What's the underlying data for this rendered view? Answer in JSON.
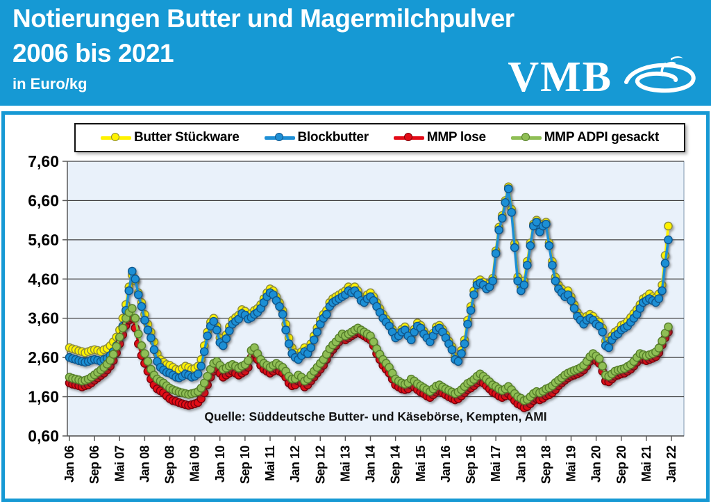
{
  "header": {
    "title_line1": "Notierungen Butter und Magermilchpulver",
    "title_line2": "2006 bis 2021",
    "unit": "in Euro/kg",
    "logo_text": "VMB"
  },
  "colors": {
    "header_bg": "#1699D4",
    "panel_border": "#1699D4",
    "plot_bg": "#E9F1FA",
    "gridline": "#404040",
    "axis": "#595959"
  },
  "chart_data": {
    "type": "line",
    "title": "Notierungen Butter und Magermilchpulver 2006 bis 2021",
    "ylabel": "Euro/kg",
    "ylim": [
      0.6,
      7.6
    ],
    "grid": true,
    "legend_position": "top",
    "y_tick_values": [
      0.6,
      1.6,
      2.6,
      3.6,
      4.6,
      5.6,
      6.6,
      7.6
    ],
    "y_tick_labels": [
      "0,60",
      "1,60",
      "2,60",
      "3,60",
      "4,60",
      "5,60",
      "6,60",
      "7,60"
    ],
    "x_tick_labels": [
      "Jan 06",
      "Sep 06",
      "Mai 07",
      "Jan 08",
      "Sep 08",
      "Mai 09",
      "Jan 10",
      "Sep 10",
      "Mai 11",
      "Jan 12",
      "Sep 12",
      "Mai 13",
      "Jan 14",
      "Sep 14",
      "Mai 15",
      "Jan 16",
      "Sep 16",
      "Mai 17",
      "Jan 18",
      "Sep 18",
      "Mai 19",
      "Jan 20",
      "Sep 20",
      "Mai 21",
      "Jan 22"
    ],
    "x_months_per_tick": 8,
    "months_total": 192,
    "x_start": "Jan 2006",
    "x_end": "Dez 2021",
    "source_note": "Quelle: Süddeutsche Butter- und Käsebörse, Kempten, AMI",
    "series": [
      {
        "name": "Butter Stückware",
        "color": "#FFF200",
        "marker_border": "#8C8C3A",
        "values": [
          2.85,
          2.82,
          2.8,
          2.77,
          2.75,
          2.72,
          2.75,
          2.78,
          2.8,
          2.78,
          2.75,
          2.8,
          2.83,
          2.9,
          3.0,
          3.12,
          3.3,
          3.6,
          3.95,
          4.4,
          4.7,
          4.55,
          4.25,
          4.0,
          3.7,
          3.45,
          3.25,
          3.0,
          2.7,
          2.55,
          2.48,
          2.42,
          2.4,
          2.35,
          2.3,
          2.28,
          2.32,
          2.38,
          2.35,
          2.3,
          2.32,
          2.38,
          2.55,
          2.9,
          3.25,
          3.5,
          3.6,
          3.4,
          3.1,
          3.02,
          3.18,
          3.38,
          3.55,
          3.62,
          3.68,
          3.82,
          3.78,
          3.68,
          3.72,
          3.8,
          3.85,
          3.95,
          4.1,
          4.25,
          4.35,
          4.3,
          4.15,
          4.0,
          3.8,
          3.45,
          3.1,
          2.85,
          2.72,
          2.65,
          2.75,
          2.85,
          2.8,
          2.95,
          3.15,
          3.35,
          3.55,
          3.7,
          3.8,
          4.0,
          4.1,
          4.15,
          4.2,
          4.25,
          4.3,
          4.4,
          4.35,
          4.4,
          4.3,
          4.15,
          4.1,
          4.2,
          4.25,
          4.15,
          4.0,
          3.85,
          3.7,
          3.58,
          3.48,
          3.32,
          3.18,
          3.22,
          3.32,
          3.38,
          3.22,
          3.12,
          3.32,
          3.48,
          3.42,
          3.28,
          3.18,
          3.08,
          3.22,
          3.38,
          3.42,
          3.32,
          3.18,
          3.02,
          2.88,
          2.62,
          2.58,
          2.78,
          3.05,
          3.55,
          3.9,
          4.3,
          4.52,
          4.58,
          4.52,
          4.42,
          4.48,
          4.62,
          5.32,
          5.92,
          6.22,
          6.6,
          6.95,
          6.38,
          5.5,
          4.65,
          4.4,
          4.55,
          5.05,
          5.52,
          6.0,
          6.1,
          5.85,
          6.0,
          6.05,
          5.52,
          5.05,
          4.65,
          4.45,
          4.35,
          4.25,
          4.3,
          4.15,
          3.95,
          3.75,
          3.65,
          3.55,
          3.65,
          3.7,
          3.65,
          3.55,
          3.5,
          3.35,
          3.02,
          2.95,
          3.15,
          3.25,
          3.3,
          3.42,
          3.45,
          3.52,
          3.62,
          3.72,
          3.82,
          3.95,
          4.1,
          4.15,
          4.22,
          4.15,
          4.12,
          4.22,
          4.45,
          5.2,
          5.95
        ]
      },
      {
        "name": "Blockbutter",
        "color": "#1E8FD5",
        "marker_border": "#10568C",
        "values": [
          2.6,
          2.57,
          2.55,
          2.52,
          2.5,
          2.48,
          2.5,
          2.53,
          2.55,
          2.53,
          2.5,
          2.55,
          2.58,
          2.65,
          2.75,
          2.9,
          3.1,
          3.4,
          3.8,
          4.3,
          4.8,
          4.6,
          4.2,
          3.9,
          3.55,
          3.3,
          3.1,
          2.8,
          2.5,
          2.35,
          2.28,
          2.22,
          2.2,
          2.15,
          2.1,
          2.08,
          2.12,
          2.18,
          2.15,
          2.1,
          2.12,
          2.18,
          2.38,
          2.75,
          3.15,
          3.4,
          3.52,
          3.3,
          2.98,
          2.9,
          3.08,
          3.28,
          3.45,
          3.52,
          3.58,
          3.72,
          3.68,
          3.58,
          3.62,
          3.7,
          3.75,
          3.85,
          4.0,
          4.15,
          4.25,
          4.2,
          4.05,
          3.9,
          3.7,
          3.3,
          2.95,
          2.7,
          2.6,
          2.55,
          2.65,
          2.75,
          2.7,
          2.85,
          3.05,
          3.25,
          3.45,
          3.6,
          3.7,
          3.9,
          4.0,
          4.05,
          4.1,
          4.15,
          4.2,
          4.3,
          4.25,
          4.3,
          4.2,
          4.05,
          4.0,
          4.1,
          4.15,
          4.05,
          3.9,
          3.75,
          3.6,
          3.5,
          3.4,
          3.25,
          3.1,
          3.15,
          3.25,
          3.3,
          3.15,
          3.05,
          3.25,
          3.4,
          3.35,
          3.2,
          3.1,
          3.0,
          3.15,
          3.3,
          3.35,
          3.25,
          3.1,
          2.95,
          2.8,
          2.55,
          2.5,
          2.7,
          2.95,
          3.45,
          3.8,
          4.2,
          4.45,
          4.5,
          4.45,
          4.35,
          4.4,
          4.55,
          5.25,
          5.85,
          6.15,
          6.55,
          6.9,
          6.3,
          5.4,
          4.55,
          4.3,
          4.45,
          4.95,
          5.45,
          5.95,
          6.05,
          5.8,
          5.95,
          6.0,
          5.45,
          4.95,
          4.55,
          4.35,
          4.25,
          4.15,
          4.2,
          4.05,
          3.85,
          3.65,
          3.55,
          3.45,
          3.55,
          3.6,
          3.55,
          3.45,
          3.4,
          3.25,
          2.9,
          2.85,
          3.05,
          3.15,
          3.2,
          3.3,
          3.35,
          3.4,
          3.5,
          3.6,
          3.7,
          3.85,
          4.0,
          4.05,
          4.1,
          4.05,
          4.0,
          4.1,
          4.3,
          5.0,
          5.6
        ]
      },
      {
        "name": "MMP lose",
        "color": "#E30B17",
        "marker_border": "#7A0008",
        "values": [
          1.95,
          1.92,
          1.9,
          1.88,
          1.85,
          1.88,
          1.9,
          1.95,
          2.02,
          2.08,
          2.14,
          2.2,
          2.28,
          2.38,
          2.52,
          2.72,
          2.95,
          3.18,
          3.42,
          3.55,
          3.6,
          3.35,
          2.95,
          2.65,
          2.45,
          2.25,
          2.05,
          1.9,
          1.8,
          1.75,
          1.7,
          1.62,
          1.55,
          1.5,
          1.48,
          1.45,
          1.42,
          1.4,
          1.38,
          1.4,
          1.42,
          1.45,
          1.55,
          1.7,
          1.9,
          2.1,
          2.25,
          2.3,
          2.2,
          2.1,
          2.15,
          2.2,
          2.25,
          2.2,
          2.15,
          2.2,
          2.25,
          2.35,
          2.6,
          2.7,
          2.55,
          2.4,
          2.3,
          2.25,
          2.2,
          2.25,
          2.3,
          2.25,
          2.2,
          2.1,
          1.95,
          1.88,
          1.9,
          2.0,
          1.95,
          1.85,
          1.9,
          2.0,
          2.1,
          2.2,
          2.3,
          2.4,
          2.55,
          2.7,
          2.8,
          2.9,
          3.0,
          3.1,
          3.05,
          3.1,
          3.15,
          3.2,
          3.25,
          3.2,
          3.15,
          3.1,
          3.05,
          2.9,
          2.7,
          2.55,
          2.4,
          2.3,
          2.2,
          2.05,
          1.9,
          1.85,
          1.8,
          1.78,
          1.8,
          1.9,
          1.85,
          1.78,
          1.72,
          1.68,
          1.62,
          1.58,
          1.65,
          1.72,
          1.75,
          1.7,
          1.65,
          1.6,
          1.56,
          1.52,
          1.55,
          1.62,
          1.7,
          1.78,
          1.82,
          1.88,
          1.95,
          2.0,
          1.95,
          1.88,
          1.8,
          1.72,
          1.68,
          1.62,
          1.58,
          1.62,
          1.68,
          1.6,
          1.5,
          1.42,
          1.38,
          1.32,
          1.35,
          1.42,
          1.5,
          1.55,
          1.52,
          1.56,
          1.62,
          1.65,
          1.7,
          1.78,
          1.88,
          1.95,
          2.02,
          2.08,
          2.12,
          2.15,
          2.18,
          2.22,
          2.28,
          2.38,
          2.5,
          2.58,
          2.52,
          2.45,
          2.25,
          2.0,
          1.98,
          2.05,
          2.12,
          2.15,
          2.18,
          2.2,
          2.25,
          2.3,
          2.38,
          2.48,
          2.58,
          2.55,
          2.52,
          2.55,
          2.58,
          2.62,
          2.72,
          2.92,
          3.1,
          3.25
        ]
      },
      {
        "name": "MMP ADPI gesackt",
        "color": "#8FBE55",
        "marker_border": "#567F2B",
        "values": [
          2.1,
          2.07,
          2.05,
          2.03,
          2.0,
          2.02,
          2.05,
          2.1,
          2.16,
          2.22,
          2.28,
          2.35,
          2.43,
          2.53,
          2.68,
          2.88,
          3.12,
          3.35,
          3.6,
          3.75,
          3.85,
          3.6,
          3.2,
          2.9,
          2.7,
          2.5,
          2.3,
          2.15,
          2.05,
          2.0,
          1.95,
          1.88,
          1.82,
          1.78,
          1.75,
          1.72,
          1.7,
          1.68,
          1.66,
          1.68,
          1.7,
          1.73,
          1.82,
          1.95,
          2.12,
          2.3,
          2.45,
          2.5,
          2.4,
          2.3,
          2.33,
          2.38,
          2.42,
          2.38,
          2.33,
          2.38,
          2.42,
          2.52,
          2.78,
          2.85,
          2.7,
          2.55,
          2.45,
          2.4,
          2.35,
          2.4,
          2.45,
          2.4,
          2.35,
          2.25,
          2.12,
          2.05,
          2.06,
          2.15,
          2.1,
          2.0,
          2.05,
          2.15,
          2.25,
          2.35,
          2.45,
          2.55,
          2.68,
          2.82,
          2.92,
          3.0,
          3.1,
          3.2,
          3.15,
          3.2,
          3.25,
          3.3,
          3.35,
          3.3,
          3.25,
          3.2,
          3.15,
          3.0,
          2.82,
          2.68,
          2.55,
          2.45,
          2.35,
          2.2,
          2.05,
          2.0,
          1.95,
          1.92,
          1.95,
          2.05,
          2.0,
          1.93,
          1.88,
          1.83,
          1.78,
          1.73,
          1.8,
          1.87,
          1.9,
          1.85,
          1.8,
          1.76,
          1.72,
          1.68,
          1.72,
          1.78,
          1.86,
          1.94,
          1.98,
          2.04,
          2.12,
          2.18,
          2.12,
          2.05,
          1.98,
          1.9,
          1.86,
          1.8,
          1.76,
          1.8,
          1.86,
          1.78,
          1.68,
          1.6,
          1.56,
          1.5,
          1.53,
          1.6,
          1.68,
          1.73,
          1.7,
          1.74,
          1.8,
          1.83,
          1.88,
          1.96,
          2.02,
          2.08,
          2.15,
          2.2,
          2.24,
          2.27,
          2.3,
          2.34,
          2.4,
          2.5,
          2.62,
          2.7,
          2.64,
          2.57,
          2.38,
          2.15,
          2.12,
          2.18,
          2.25,
          2.28,
          2.3,
          2.32,
          2.37,
          2.42,
          2.5,
          2.6,
          2.7,
          2.67,
          2.64,
          2.67,
          2.7,
          2.74,
          2.84,
          3.02,
          3.22,
          3.38
        ]
      }
    ]
  }
}
